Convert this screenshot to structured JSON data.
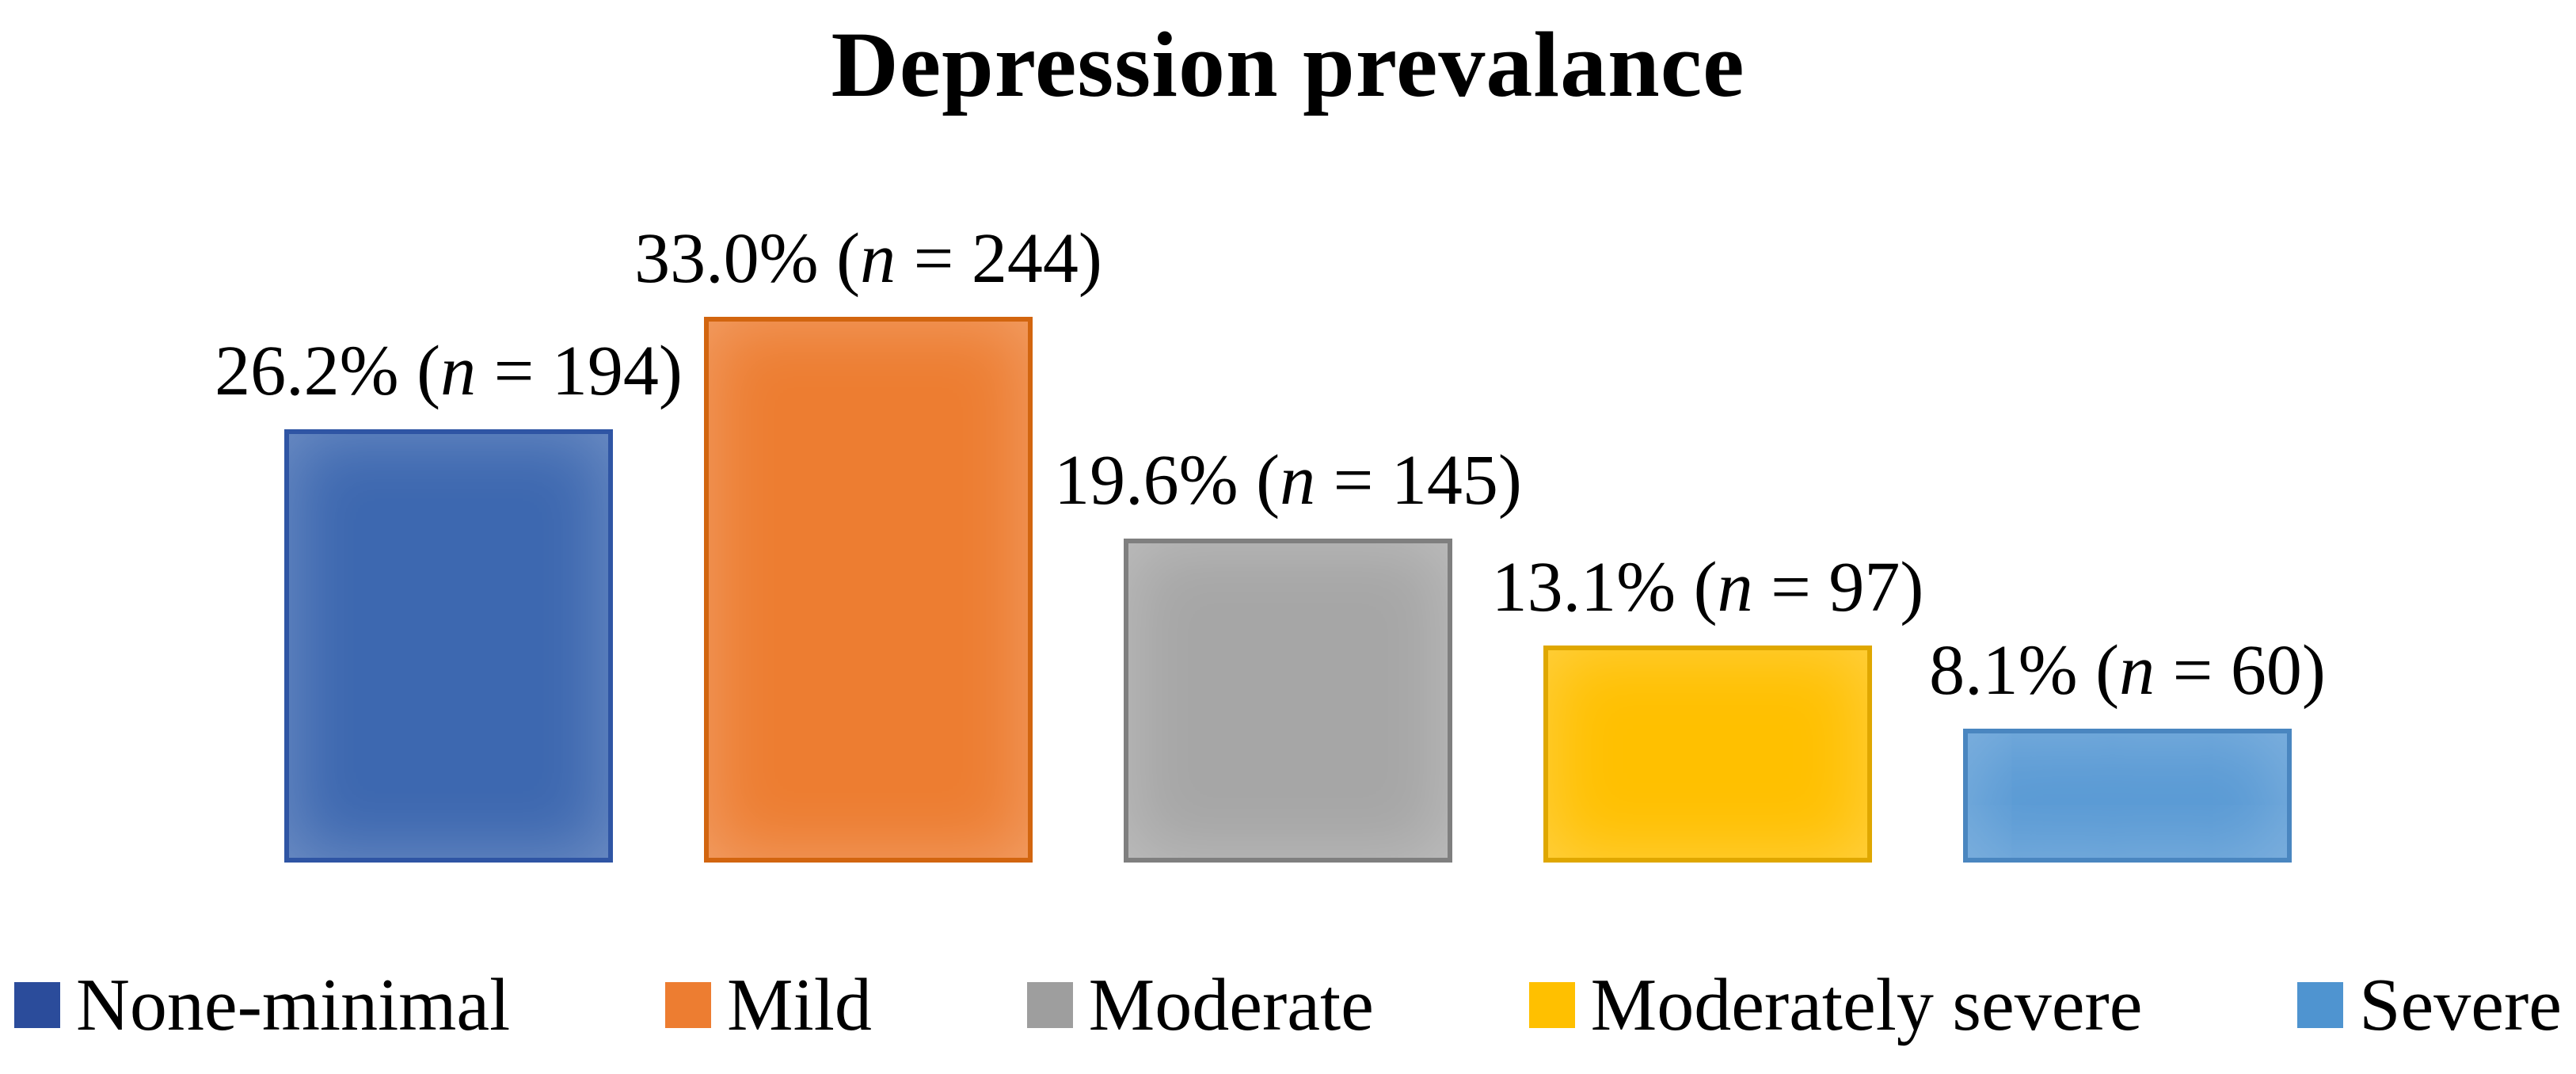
{
  "chart_data": {
    "type": "bar",
    "title": "Depression prevalance",
    "categories": [
      "None-minimal",
      "Mild",
      "Moderate",
      "Moderately severe",
      "Severe"
    ],
    "values": [
      26.2,
      33.0,
      19.6,
      13.1,
      8.1
    ],
    "counts": [
      194,
      244,
      145,
      97,
      60
    ],
    "value_labels": [
      "26.2% (n = 194)",
      "33.0% (n = 244)",
      "19.6% (n = 145)",
      "13.1% (n = 97)",
      "8.1% (n = 60)"
    ],
    "bar_colors": [
      "#3D68B0",
      "#ED7D31",
      "#A6A6A6",
      "#FFC000",
      "#5B9BD5"
    ],
    "bar_border_colors": [
      "#2F55A4",
      "#D2650F",
      "#7F7F7F",
      "#DFA700",
      "#4A86C0"
    ],
    "legend_colors": [
      "#2B4C9B",
      "#ED7D31",
      "#9E9E9E",
      "#FFC000",
      "#4F94D0"
    ],
    "xlabel": "",
    "ylabel": "",
    "ylim": [
      0,
      33
    ],
    "grid": false,
    "legend_position": "bottom",
    "axes_visible": false
  }
}
